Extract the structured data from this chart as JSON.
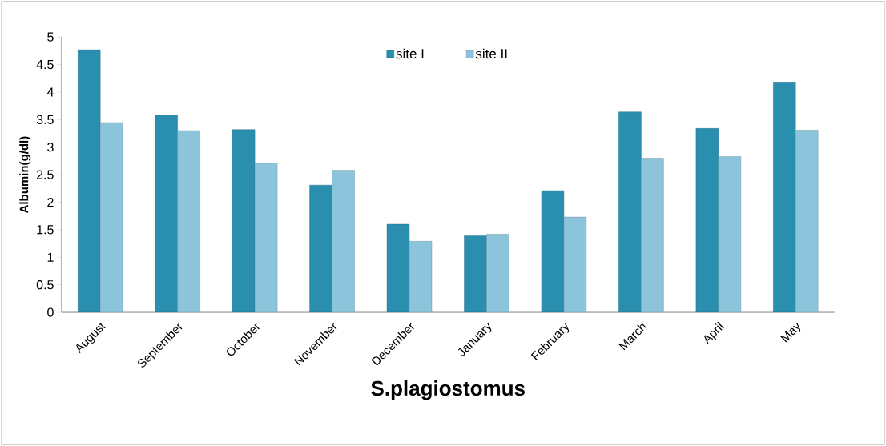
{
  "chart_data": {
    "type": "bar",
    "xlabel": "S.plagiostomus",
    "ylabel": "Albumin(g/dl)",
    "categories": [
      "August",
      "September",
      "October",
      "November",
      "December",
      "January",
      "February",
      "March",
      "April",
      "May"
    ],
    "series": [
      {
        "name": "site I",
        "color": "#2a8fae",
        "values": [
          4.77,
          3.58,
          3.32,
          2.31,
          1.6,
          1.39,
          2.21,
          3.64,
          3.34,
          4.17
        ]
      },
      {
        "name": "site II",
        "color": "#8cc4dc",
        "values": [
          3.45,
          3.3,
          2.71,
          2.58,
          1.29,
          1.42,
          1.73,
          2.8,
          2.83,
          3.31
        ]
      }
    ],
    "ylim": [
      0,
      5
    ],
    "yticks": [
      0,
      0.5,
      1,
      1.5,
      2,
      2.5,
      3,
      3.5,
      4,
      4.5,
      5
    ],
    "legend": "top",
    "grid": false
  }
}
